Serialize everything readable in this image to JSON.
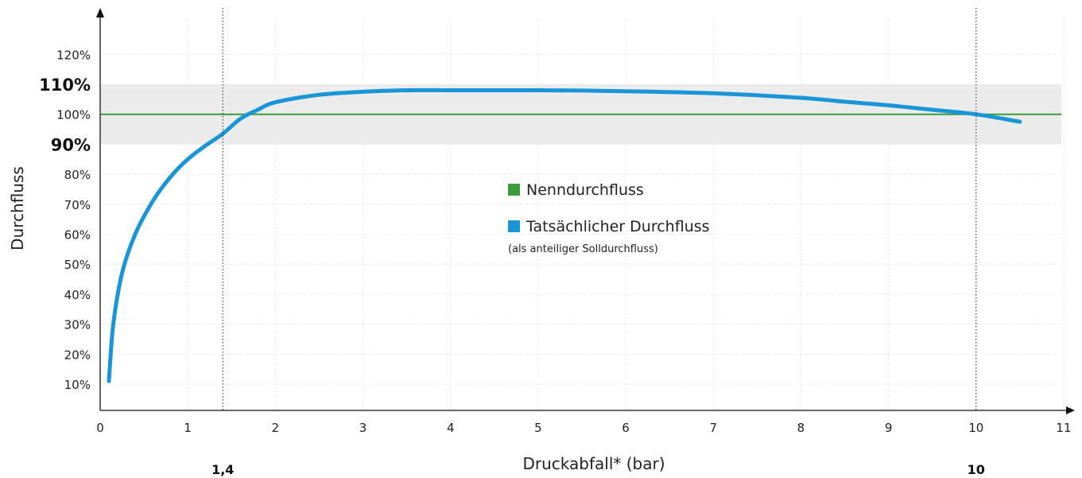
{
  "chart_data": {
    "type": "line",
    "xlabel": "Druckabfall* (bar)",
    "ylabel": "Durchfluss",
    "xlim": [
      0,
      11
    ],
    "ylim": [
      0,
      125
    ],
    "x_ticks": [
      "0",
      "1",
      "2",
      "3",
      "4",
      "5",
      "6",
      "7",
      "8",
      "9",
      "10",
      "11"
    ],
    "y_ticks": [
      {
        "value": 10,
        "label": "10%",
        "bold": false
      },
      {
        "value": 20,
        "label": "20%",
        "bold": false
      },
      {
        "value": 30,
        "label": "30%",
        "bold": false
      },
      {
        "value": 40,
        "label": "40%",
        "bold": false
      },
      {
        "value": 50,
        "label": "50%",
        "bold": false
      },
      {
        "value": 60,
        "label": "60%",
        "bold": false
      },
      {
        "value": 70,
        "label": "70%",
        "bold": false
      },
      {
        "value": 80,
        "label": "80%",
        "bold": false
      },
      {
        "value": 90,
        "label": "90%",
        "bold": true
      },
      {
        "value": 100,
        "label": "100%",
        "bold": false
      },
      {
        "value": 110,
        "label": "110%",
        "bold": true
      },
      {
        "value": 120,
        "label": "120%",
        "bold": false
      }
    ],
    "tolerance_band": [
      90,
      110
    ],
    "vertical_markers": [
      {
        "x": 1.4,
        "label": "1,4"
      },
      {
        "x": 10,
        "label": "10"
      }
    ],
    "grid": true,
    "legend_position": "center",
    "series": [
      {
        "name": "Nenndurchfluss",
        "color": "#3a9c3a",
        "x": [
          0,
          11
        ],
        "y": [
          100,
          100
        ]
      },
      {
        "name": "Tatsächlicher Durchfluss",
        "note": "(als anteiliger Solldurchfluss)",
        "color": "#1a96d8",
        "x": [
          0.1,
          0.15,
          0.25,
          0.4,
          0.6,
          0.8,
          1.0,
          1.2,
          1.4,
          1.6,
          1.8,
          2.0,
          2.5,
          3.0,
          3.5,
          4.0,
          5.0,
          6.0,
          7.0,
          8.0,
          8.5,
          9.0,
          9.5,
          10.0,
          10.5
        ],
        "y": [
          11,
          30,
          47,
          60,
          71,
          79,
          85,
          89.5,
          93.5,
          98.5,
          101.5,
          104,
          106.5,
          107.5,
          108,
          108,
          108,
          107.7,
          107,
          105.5,
          104.2,
          103,
          101.5,
          100,
          97.5
        ]
      }
    ]
  }
}
